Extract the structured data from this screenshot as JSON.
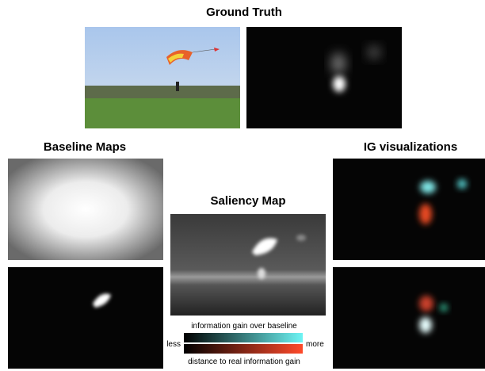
{
  "titles": {
    "ground_truth": "Ground Truth",
    "baseline_maps": "Baseline Maps",
    "saliency_map": "Saliency Map",
    "ig_visualizations": "IG visualizations"
  },
  "legend": {
    "top_label": "information gain over baseline",
    "bottom_label": "distance to real information gain",
    "low": "less",
    "high": "more"
  }
}
